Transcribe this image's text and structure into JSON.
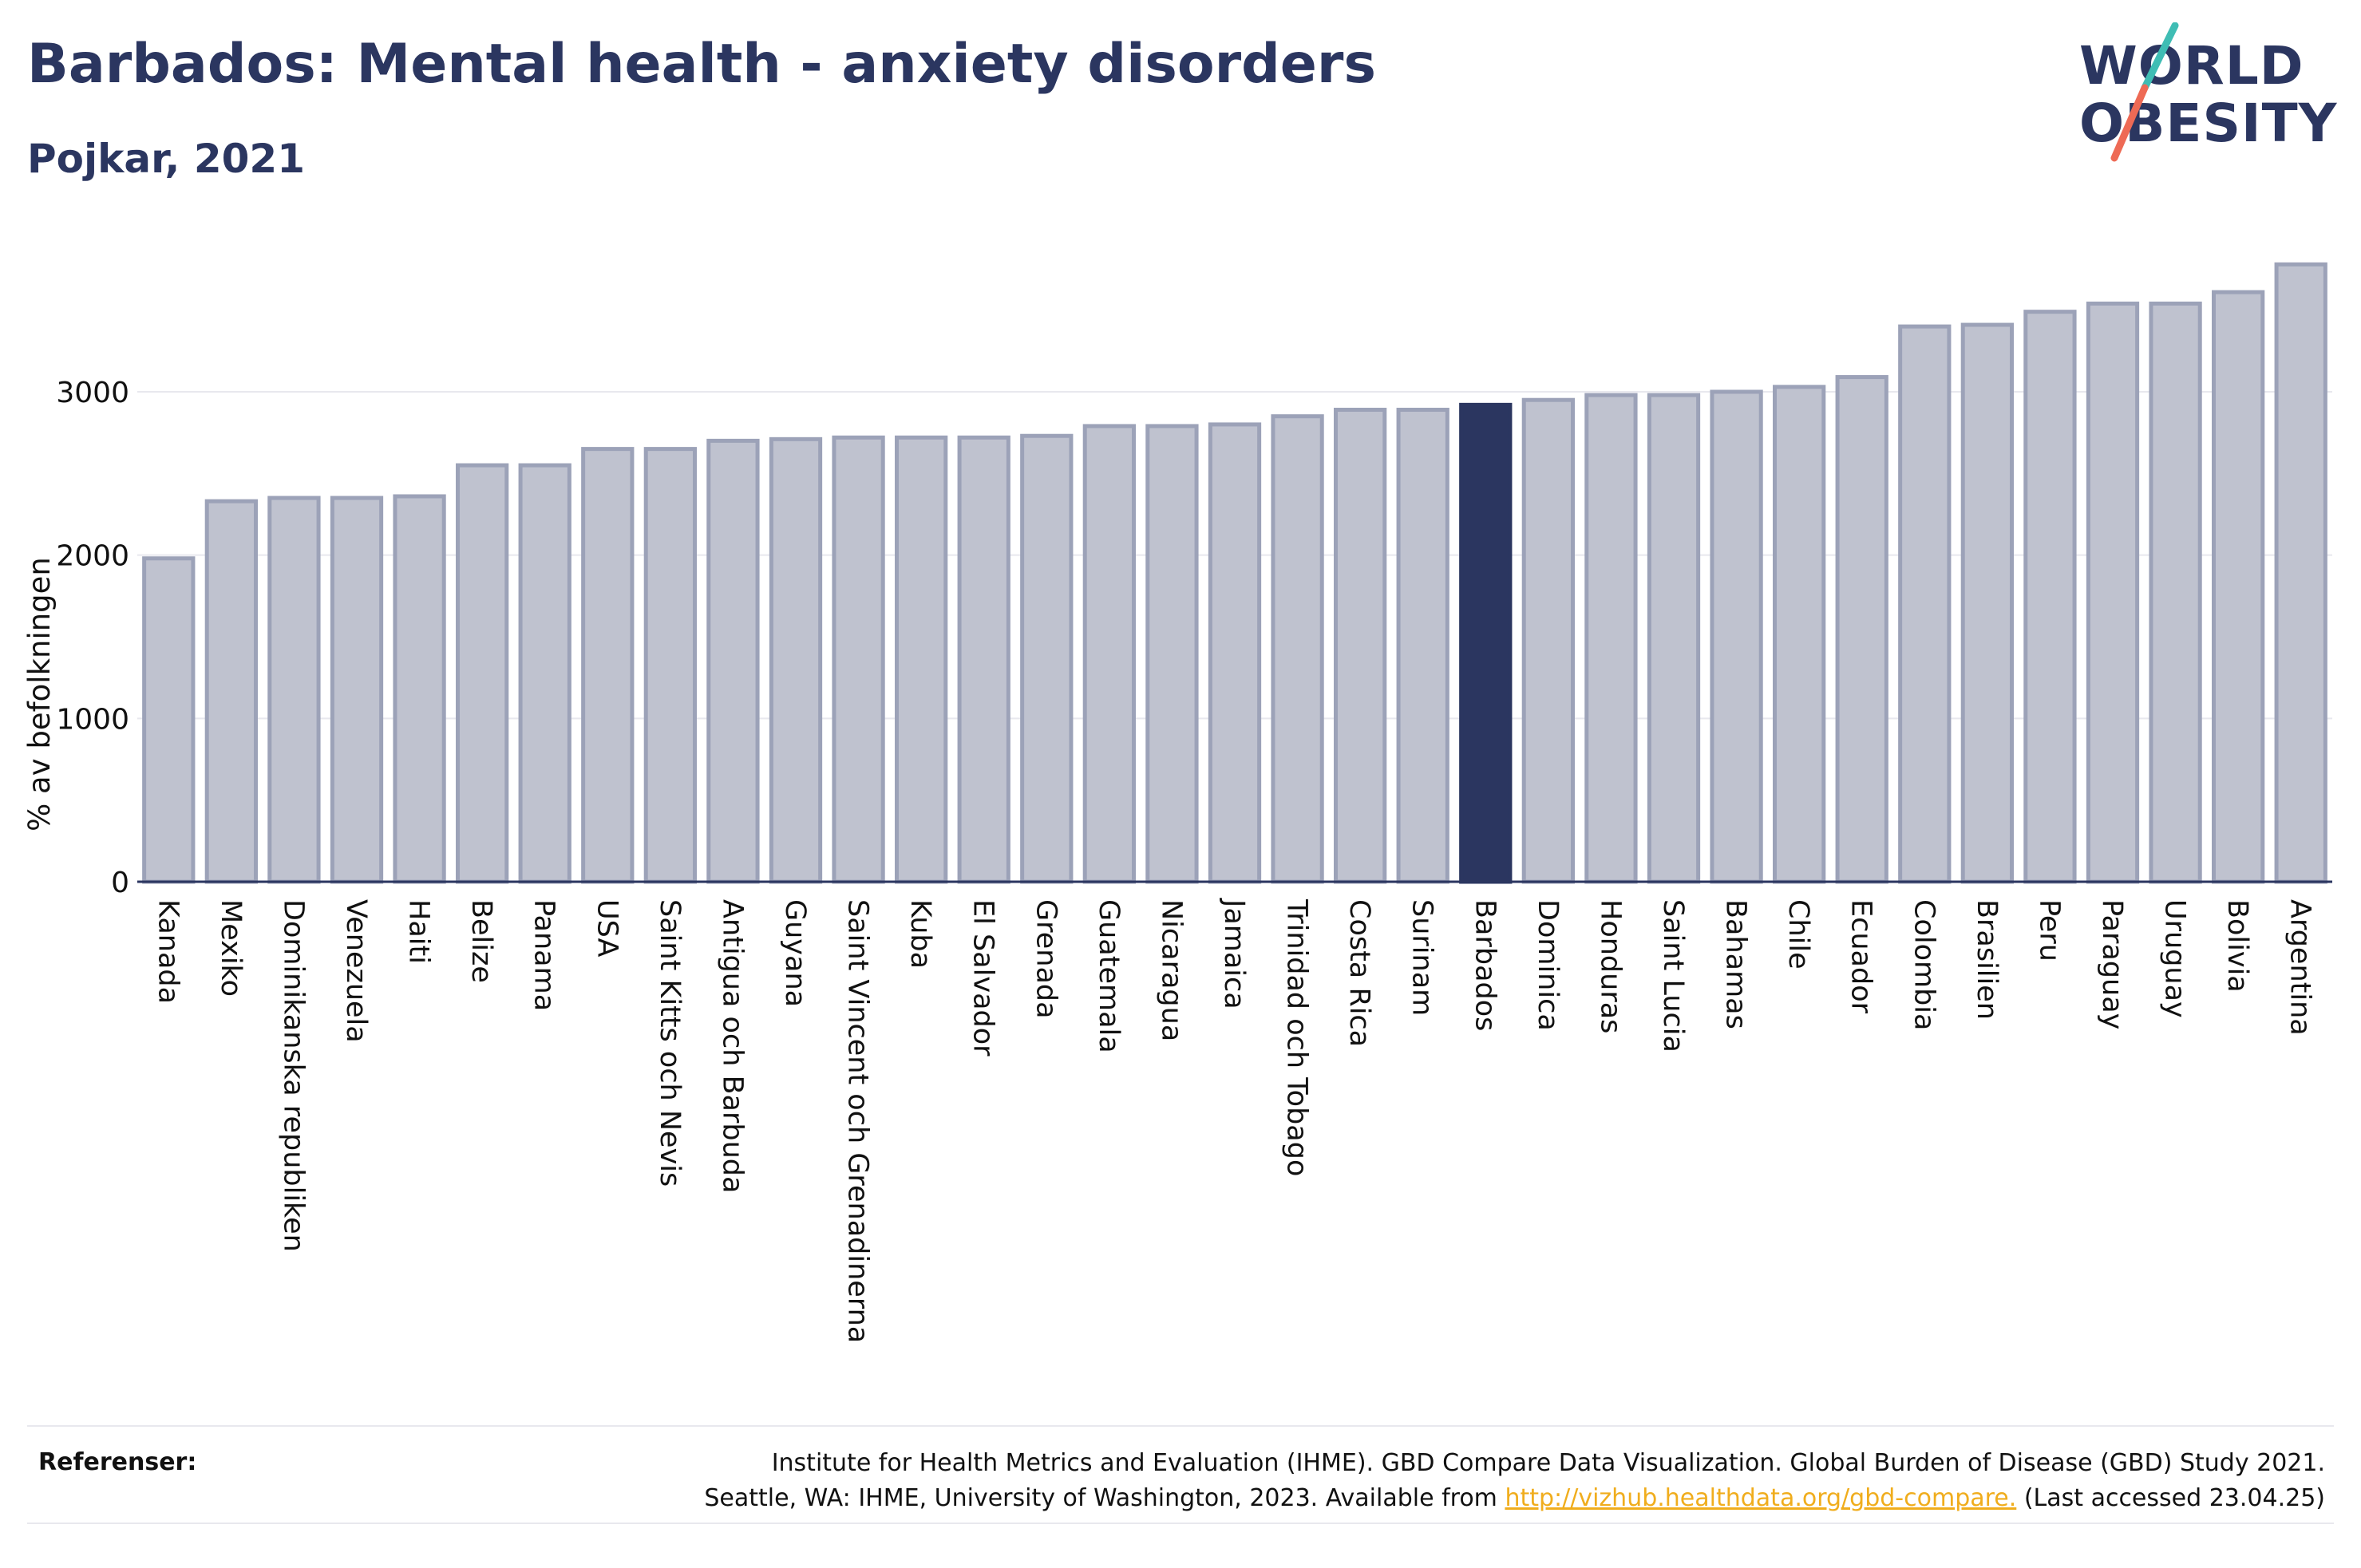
{
  "header": {
    "title": "Barbados: Mental health - anxiety disorders",
    "subtitle": "Pojkar, 2021"
  },
  "logo": {
    "line1": "WORLD",
    "line2": "OBESITY"
  },
  "colors": {
    "text": "#2b3660",
    "bar": "#bfc2cf",
    "bar_border": "#9ca2b8",
    "highlight": "#2b3660",
    "grid": "#e8e8ee",
    "link": "#f0ad1d",
    "logo_teal": "#3fbdb4",
    "logo_coral": "#ee6a55"
  },
  "chart_data": {
    "type": "bar",
    "title": "Barbados: Mental health - anxiety disorders",
    "subtitle": "Pojkar, 2021",
    "xlabel": "",
    "ylabel": "% av befolkningen",
    "ylim": [
      0,
      3850
    ],
    "yticks": [
      0,
      1000,
      2000,
      3000
    ],
    "grid": true,
    "highlight": "Barbados",
    "categories": [
      "Kanada",
      "Mexiko",
      "Dominikanska republiken",
      "Venezuela",
      "Haiti",
      "Belize",
      "Panama",
      "USA",
      "Saint Kitts och Nevis",
      "Antigua och Barbuda",
      "Guyana",
      "Saint Vincent och Grenadinerna",
      "Kuba",
      "El Salvador",
      "Grenada",
      "Guatemala",
      "Nicaragua",
      "Jamaica",
      "Trinidad och Tobago",
      "Costa Rica",
      "Surinam",
      "Barbados",
      "Dominica",
      "Honduras",
      "Saint Lucia",
      "Bahamas",
      "Chile",
      "Ecuador",
      "Colombia",
      "Brasilien",
      "Peru",
      "Paraguay",
      "Uruguay",
      "Bolivia",
      "Argentina"
    ],
    "values": [
      1980,
      2330,
      2350,
      2350,
      2360,
      2550,
      2550,
      2650,
      2650,
      2700,
      2710,
      2720,
      2720,
      2720,
      2730,
      2790,
      2790,
      2800,
      2850,
      2890,
      2890,
      2920,
      2950,
      2980,
      2980,
      3000,
      3030,
      3090,
      3400,
      3410,
      3490,
      3540,
      3540,
      3610,
      3780
    ]
  },
  "footer": {
    "label": "Referenser:",
    "line1": "Institute for Health Metrics and Evaluation (IHME). GBD Compare Data Visualization. Global Burden of Disease (GBD) Study 2021.",
    "line2_prefix": "Seattle, WA: IHME, University of Washington, 2023. Available from ",
    "link": "http://vizhub.healthdata.org/gbd-compare.",
    "line2_suffix": " (Last accessed 23.04.25)"
  }
}
